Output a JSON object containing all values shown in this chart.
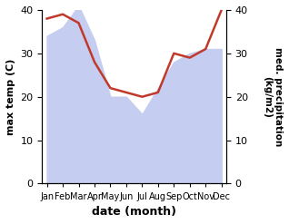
{
  "months": [
    "Jan",
    "Feb",
    "Mar",
    "Apr",
    "May",
    "Jun",
    "Jul",
    "Aug",
    "Sep",
    "Oct",
    "Nov",
    "Dec"
  ],
  "max_temp": [
    34,
    36,
    41,
    33,
    20,
    20,
    16,
    22,
    28,
    30,
    31,
    31
  ],
  "precipitation": [
    38,
    39,
    37,
    28,
    22,
    21,
    20,
    21,
    30,
    29,
    31,
    40
  ],
  "precip_color": "#c0392b",
  "temp_fill_color": "#c5cef0",
  "ylabel_left": "max temp (C)",
  "ylabel_right": "med. precipitation\n(kg/m2)",
  "xlabel": "date (month)",
  "ylim_left": [
    0,
    40
  ],
  "ylim_right": [
    0,
    40
  ],
  "yticks_left": [
    0,
    10,
    20,
    30,
    40
  ],
  "yticks_right": [
    0,
    10,
    20,
    30,
    40
  ],
  "background_color": "#ffffff"
}
